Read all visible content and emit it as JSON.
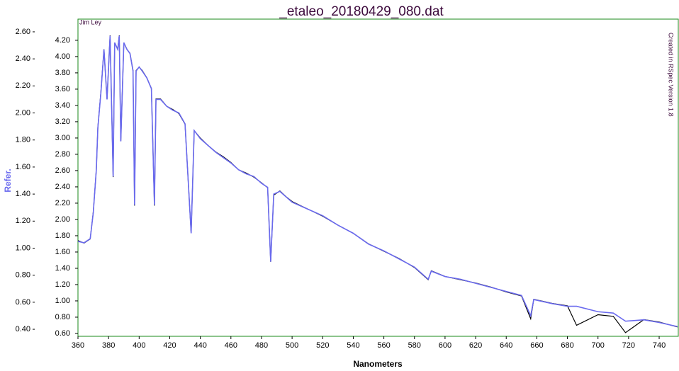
{
  "chart_data": {
    "type": "line",
    "title": "_etaleo_20180429_080.dat",
    "xlabel": "Nanometers",
    "y2label": "Refer.",
    "annotations": [
      "Jim Ley",
      "Created in RSpec Version 1.8"
    ],
    "x": [
      360,
      364,
      368,
      370,
      372,
      373,
      375,
      377,
      379,
      381,
      383,
      384,
      386,
      387,
      388,
      390,
      392,
      394,
      396,
      397,
      398,
      400,
      402,
      405,
      408,
      410,
      411,
      414,
      418,
      422,
      426,
      430,
      434,
      436,
      440,
      445,
      450,
      455,
      460,
      465,
      470,
      475,
      480,
      484,
      486,
      488,
      492,
      496,
      500,
      510,
      520,
      530,
      540,
      550,
      560,
      570,
      580,
      589,
      591,
      600,
      610,
      620,
      630,
      640,
      650,
      656,
      658,
      670,
      680,
      686,
      700,
      710,
      718,
      730,
      740,
      752
    ],
    "series": [
      {
        "color": "#000000",
        "values": [
          1.74,
          1.71,
          1.76,
          2.09,
          2.61,
          3.13,
          3.57,
          4.09,
          3.48,
          4.26,
          2.52,
          4.17,
          4.09,
          4.26,
          2.96,
          4.17,
          4.09,
          4.04,
          3.83,
          2.17,
          3.83,
          3.87,
          3.83,
          3.74,
          3.61,
          2.17,
          3.48,
          3.48,
          3.39,
          3.35,
          3.3,
          3.17,
          1.83,
          3.09,
          3.0,
          2.91,
          2.83,
          2.77,
          2.7,
          2.61,
          2.57,
          2.52,
          2.45,
          2.39,
          1.48,
          2.3,
          2.35,
          2.28,
          2.22,
          2.13,
          2.04,
          1.93,
          1.83,
          1.7,
          1.61,
          1.52,
          1.41,
          1.26,
          1.37,
          1.3,
          1.26,
          1.22,
          1.17,
          1.11,
          1.06,
          0.78,
          1.02,
          0.97,
          0.94,
          0.7,
          0.83,
          0.81,
          0.61,
          0.77,
          0.74,
          0.68
        ]
      },
      {
        "color": "#6a6aee",
        "axis": "y2",
        "values": [
          1.05,
          1.04,
          1.07,
          1.26,
          1.58,
          1.89,
          2.15,
          2.47,
          2.1,
          2.57,
          1.53,
          2.52,
          2.47,
          2.57,
          1.79,
          2.52,
          2.47,
          2.44,
          2.31,
          1.32,
          2.31,
          2.34,
          2.31,
          2.26,
          2.18,
          1.32,
          2.1,
          2.1,
          2.05,
          2.02,
          2.0,
          1.92,
          1.11,
          1.87,
          1.81,
          1.76,
          1.71,
          1.67,
          1.63,
          1.58,
          1.55,
          1.53,
          1.48,
          1.45,
          0.9,
          1.4,
          1.42,
          1.38,
          1.34,
          1.29,
          1.24,
          1.17,
          1.11,
          1.03,
          0.98,
          0.92,
          0.86,
          0.77,
          0.83,
          0.79,
          0.77,
          0.74,
          0.71,
          0.68,
          0.65,
          0.5,
          0.62,
          0.59,
          0.57,
          0.57,
          0.53,
          0.52,
          0.46,
          0.47,
          0.45,
          0.42
        ]
      }
    ],
    "xlim": [
      360,
      752.5
    ],
    "xticks": [
      360,
      380,
      400,
      420,
      440,
      460,
      480,
      500,
      520,
      540,
      560,
      580,
      600,
      620,
      640,
      660,
      680,
      700,
      720,
      740
    ],
    "ylim": [
      0.565,
      4.46
    ],
    "yticks": [
      {
        "value": 0.6,
        "label": "0.60"
      },
      {
        "value": 0.8,
        "label": "0.80"
      },
      {
        "value": 1.0,
        "label": "1.00"
      },
      {
        "value": 1.2,
        "label": "1.20"
      },
      {
        "value": 1.4,
        "label": "1.40"
      },
      {
        "value": 1.6,
        "label": "1.60"
      },
      {
        "value": 1.8,
        "label": "1.80"
      },
      {
        "value": 2.0,
        "label": "2.00"
      },
      {
        "value": 2.2,
        "label": "2.20"
      },
      {
        "value": 2.4,
        "label": "2.40"
      },
      {
        "value": 2.6,
        "label": "2.60"
      },
      {
        "value": 2.8,
        "label": "2.80"
      },
      {
        "value": 3.0,
        "label": "3.00"
      },
      {
        "value": 3.2,
        "label": "3.20"
      },
      {
        "value": 3.4,
        "label": "3.40"
      },
      {
        "value": 3.6,
        "label": "3.60"
      },
      {
        "value": 3.8,
        "label": "3.80"
      },
      {
        "value": 4.0,
        "label": "4.00"
      },
      {
        "value": 4.2,
        "label": "4.20"
      }
    ],
    "y2lim": [
      0.348,
      2.694
    ],
    "y2ticks": [
      {
        "value": 0.4,
        "label": "0.40"
      },
      {
        "value": 0.6,
        "label": "0.60"
      },
      {
        "value": 0.8,
        "label": "0.80"
      },
      {
        "value": 1.0,
        "label": "1.00"
      },
      {
        "value": 1.2,
        "label": "1.20"
      },
      {
        "value": 1.4,
        "label": "1.40"
      },
      {
        "value": 1.6,
        "label": "1.60"
      },
      {
        "value": 1.8,
        "label": "1.80"
      },
      {
        "value": 2.0,
        "label": "2.00"
      },
      {
        "value": 2.2,
        "label": "2.20"
      },
      {
        "value": 2.4,
        "label": "2.40"
      },
      {
        "value": 2.6,
        "label": "2.60"
      }
    ]
  }
}
